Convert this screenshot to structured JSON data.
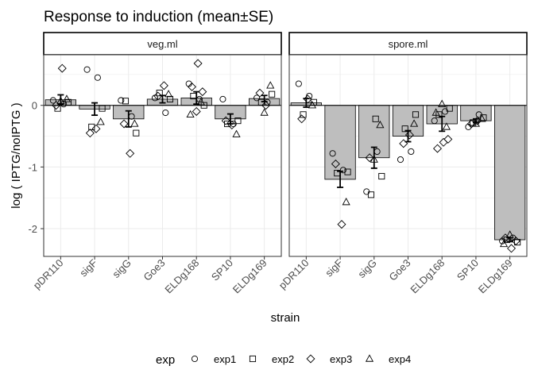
{
  "chart_data": {
    "type": "bar",
    "title": "Response to induction (mean±SE)",
    "xlabel": "strain",
    "ylabel": "log ( IPTG/noIPTG )",
    "ylim": [
      -2.45,
      0.82
    ],
    "yticks": [
      -2,
      -1,
      0
    ],
    "grid": true,
    "legend_position": "bottom",
    "legend": {
      "title": "exp",
      "entries": [
        {
          "name": "exp1",
          "shape": "circle"
        },
        {
          "name": "exp2",
          "shape": "square"
        },
        {
          "name": "exp3",
          "shape": "diamond"
        },
        {
          "name": "exp4",
          "shape": "triangle"
        }
      ]
    },
    "categories": [
      "pDR110",
      "sigF",
      "sigG",
      "Goe3",
      "ELDg168",
      "SP10",
      "ELDg169"
    ],
    "panels": [
      {
        "label": "veg.ml",
        "means": [
          0.09,
          -0.06,
          -0.22,
          0.1,
          0.12,
          -0.22,
          0.11
        ],
        "se": [
          0.08,
          0.1,
          0.13,
          0.06,
          0.1,
          0.08,
          0.05
        ],
        "points": {
          "pDR110": {
            "exp1": [
              0.08,
              0.02
            ],
            "exp2": [
              -0.05,
              0.05
            ],
            "exp3": [
              0.6,
              0.0
            ],
            "exp4": [
              0.1,
              0.07
            ]
          },
          "sigF": {
            "exp1": [
              0.58,
              0.45
            ],
            "exp2": [
              -0.35,
              -0.05
            ],
            "exp3": [
              -0.38,
              -0.45
            ],
            "exp4": [
              -0.27
            ]
          },
          "sigG": {
            "exp1": [
              0.08,
              -0.18
            ],
            "exp2": [
              0.07,
              -0.45
            ],
            "exp3": [
              -0.78,
              -0.3
            ],
            "exp4": [
              -0.3
            ]
          },
          "Goe3": {
            "exp1": [
              0.12,
              -0.12
            ],
            "exp2": [
              0.2,
              0.1
            ],
            "exp3": [
              0.32,
              0.15
            ],
            "exp4": [
              0.18
            ]
          },
          "ELDg168": {
            "exp1": [
              0.35,
              0.1
            ],
            "exp2": [
              0.15,
              0.0
            ],
            "exp3": [
              0.68,
              0.3,
              0.22,
              -0.1
            ],
            "exp4": [
              -0.15,
              0.05
            ]
          },
          "SP10": {
            "exp1": [
              0.1,
              -0.3
            ],
            "exp2": [
              -0.3,
              -0.25
            ],
            "exp3": [
              -0.32,
              -0.25
            ],
            "exp4": [
              -0.47
            ]
          },
          "ELDg169": {
            "exp1": [
              0.12,
              0.05
            ],
            "exp2": [
              0.05,
              0.18
            ],
            "exp3": [
              0.0,
              0.2
            ],
            "exp4": [
              0.32,
              -0.12
            ]
          }
        }
      },
      {
        "label": "spore.ml",
        "means": [
          0.04,
          -1.2,
          -0.85,
          -0.5,
          -0.3,
          -0.25,
          -2.18
        ],
        "se": [
          0.07,
          0.13,
          0.17,
          0.09,
          0.12,
          0.03,
          0.03
        ],
        "points": {
          "pDR110": {
            "exp1": [
              0.35,
              0.15
            ],
            "exp2": [
              -0.15,
              0.05
            ],
            "exp3": [
              0.1,
              -0.22
            ],
            "exp4": [
              0.0
            ]
          },
          "sigF": {
            "exp1": [
              -0.78,
              -1.05
            ],
            "exp2": [
              -1.1,
              -1.08
            ],
            "exp3": [
              -1.93,
              -0.95
            ],
            "exp4": [
              -1.57
            ]
          },
          "sigG": {
            "exp1": [
              -1.4,
              -0.75
            ],
            "exp2": [
              -1.45,
              -1.15,
              -0.22
            ],
            "exp3": [
              -0.85
            ],
            "exp4": [
              -0.32,
              -0.88
            ]
          },
          "Goe3": {
            "exp1": [
              -0.88,
              -0.75
            ],
            "exp2": [
              -0.38,
              -0.15
            ],
            "exp3": [
              -0.48,
              -0.62
            ],
            "exp4": [
              -0.3
            ]
          },
          "ELDg168": {
            "exp1": [
              -0.25,
              -0.1
            ],
            "exp2": [
              -0.15,
              -0.05
            ],
            "exp3": [
              -0.6,
              -0.7,
              -0.55
            ],
            "exp4": [
              0.02,
              -0.12,
              -0.35
            ]
          },
          "SP10": {
            "exp1": [
              -0.35,
              -0.15
            ],
            "exp2": [
              -0.28,
              -0.2
            ],
            "exp3": [
              -0.25,
              -0.3
            ],
            "exp4": [
              -0.22,
              -0.3
            ]
          },
          "ELDg169": {
            "exp1": [
              -2.2,
              -2.15
            ],
            "exp2": [
              -2.18,
              -2.22
            ],
            "exp3": [
              -2.32,
              -2.15,
              -2.2
            ],
            "exp4": [
              -2.1,
              -2.25
            ]
          }
        }
      }
    ]
  }
}
